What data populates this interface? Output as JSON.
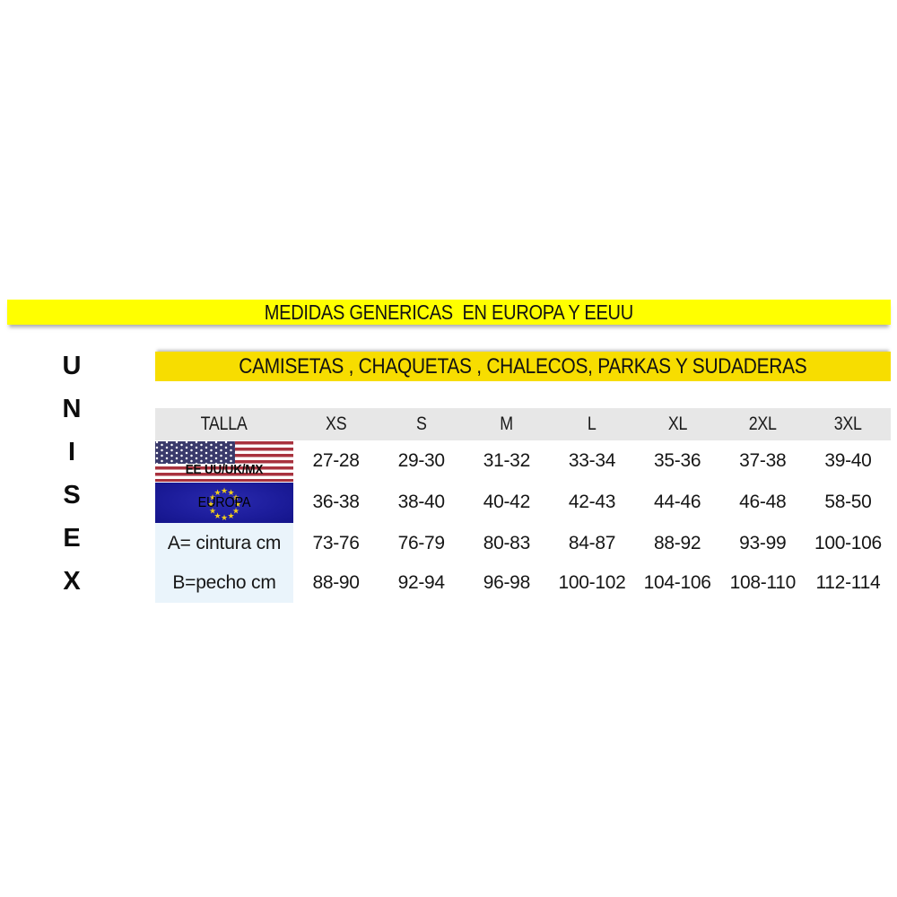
{
  "banner_top": {
    "text": "MEDIDAS GENERICAS  EN EUROPA Y EEUU",
    "bg_color": "#FFFF00"
  },
  "vertical_label": {
    "letters": [
      "U",
      "N",
      "I",
      "S",
      "E",
      "X"
    ]
  },
  "banner_section": {
    "text": "CAMISETAS , CHAQUETAS , CHALECOS, PARKAS Y SUDADERAS",
    "bg_color": "#F7DD00"
  },
  "size_table": {
    "header": [
      "TALLA",
      "XS",
      "S",
      "M",
      "L",
      "XL",
      "2XL",
      "3XL"
    ],
    "rows": [
      {
        "label": "EE UU/UK/MX",
        "flag": "usa-flag",
        "values": [
          "27-28",
          "29-30",
          "31-32",
          "33-34",
          "35-36",
          "37-38",
          "39-40"
        ]
      },
      {
        "label": "EUROPA",
        "flag": "eu-flag",
        "values": [
          "36-38",
          "38-40",
          "40-42",
          "42-43",
          "44-46",
          "46-48",
          "58-50"
        ]
      },
      {
        "label": "A= cintura cm",
        "values": [
          "73-76",
          "76-79",
          "80-83",
          "84-87",
          "88-92",
          "93-99",
          "100-106"
        ]
      },
      {
        "label": "B=pecho cm",
        "values": [
          "88-90",
          "92-94",
          "96-98",
          "100-102",
          "104-106",
          "108-110",
          "112-114"
        ]
      }
    ],
    "colors": {
      "header_bg": "#E7E7E7",
      "label_bg": "#EAF4FB",
      "usa_red": "#A8323E",
      "usa_canton_blue": "#3A3A6B",
      "eu_blue": "#1D1D9C",
      "eu_star_gold": "#F2CE1B"
    }
  }
}
